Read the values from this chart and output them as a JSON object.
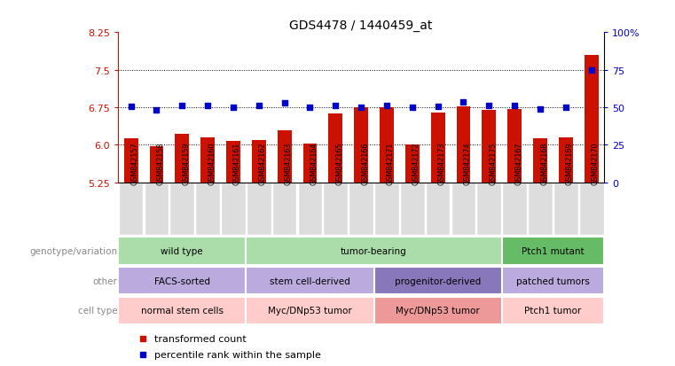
{
  "title": "GDS4478 / 1440459_at",
  "samples": [
    "GSM842157",
    "GSM842158",
    "GSM842159",
    "GSM842160",
    "GSM842161",
    "GSM842162",
    "GSM842163",
    "GSM842164",
    "GSM842165",
    "GSM842166",
    "GSM842171",
    "GSM842172",
    "GSM842173",
    "GSM842174",
    "GSM842175",
    "GSM842167",
    "GSM842168",
    "GSM842169",
    "GSM842170"
  ],
  "bar_values": [
    6.12,
    5.97,
    6.21,
    6.14,
    6.08,
    6.1,
    6.28,
    6.02,
    6.63,
    6.75,
    6.75,
    6.0,
    6.65,
    6.77,
    6.69,
    6.71,
    6.12,
    6.14,
    7.8
  ],
  "dot_values": [
    6.77,
    6.7,
    6.79,
    6.78,
    6.75,
    6.79,
    6.84,
    6.75,
    6.78,
    6.75,
    6.78,
    6.75,
    6.76,
    6.86,
    6.78,
    6.78,
    6.72,
    6.75,
    7.5
  ],
  "ylim_left": [
    5.25,
    8.25
  ],
  "ylim_right": [
    0,
    100
  ],
  "yticks_left": [
    5.25,
    6.0,
    6.75,
    7.5,
    8.25
  ],
  "yticks_right": [
    0,
    25,
    50,
    75,
    100
  ],
  "bar_color": "#CC1100",
  "dot_color": "#0000CC",
  "gridline_values": [
    6.0,
    6.75,
    7.5
  ],
  "annotation_rows": [
    {
      "label": "genotype/variation",
      "groups": [
        {
          "text": "wild type",
          "start": 0,
          "end": 4,
          "color": "#AADDAA"
        },
        {
          "text": "tumor-bearing",
          "start": 5,
          "end": 14,
          "color": "#AADDAA"
        },
        {
          "text": "Ptch1 mutant",
          "start": 15,
          "end": 18,
          "color": "#66BB66"
        }
      ]
    },
    {
      "label": "other",
      "groups": [
        {
          "text": "FACS-sorted",
          "start": 0,
          "end": 4,
          "color": "#BBAADD"
        },
        {
          "text": "stem cell-derived",
          "start": 5,
          "end": 9,
          "color": "#BBAADD"
        },
        {
          "text": "progenitor-derived",
          "start": 10,
          "end": 14,
          "color": "#8877BB"
        },
        {
          "text": "patched tumors",
          "start": 15,
          "end": 18,
          "color": "#BBAADD"
        }
      ]
    },
    {
      "label": "cell type",
      "groups": [
        {
          "text": "normal stem cells",
          "start": 0,
          "end": 4,
          "color": "#FFCCCC"
        },
        {
          "text": "Myc/DNp53 tumor",
          "start": 5,
          "end": 9,
          "color": "#FFCCCC"
        },
        {
          "text": "Myc/DNp53 tumor",
          "start": 10,
          "end": 14,
          "color": "#EE9999"
        },
        {
          "text": "Ptch1 tumor",
          "start": 15,
          "end": 18,
          "color": "#FFCCCC"
        }
      ]
    }
  ],
  "legend_items": [
    {
      "label": "transformed count",
      "color": "#CC1100"
    },
    {
      "label": "percentile rank within the sample",
      "color": "#0000CC"
    }
  ],
  "tick_label_bg": "#DDDDDD",
  "label_color": "#888888",
  "arrow_color": "#888888"
}
